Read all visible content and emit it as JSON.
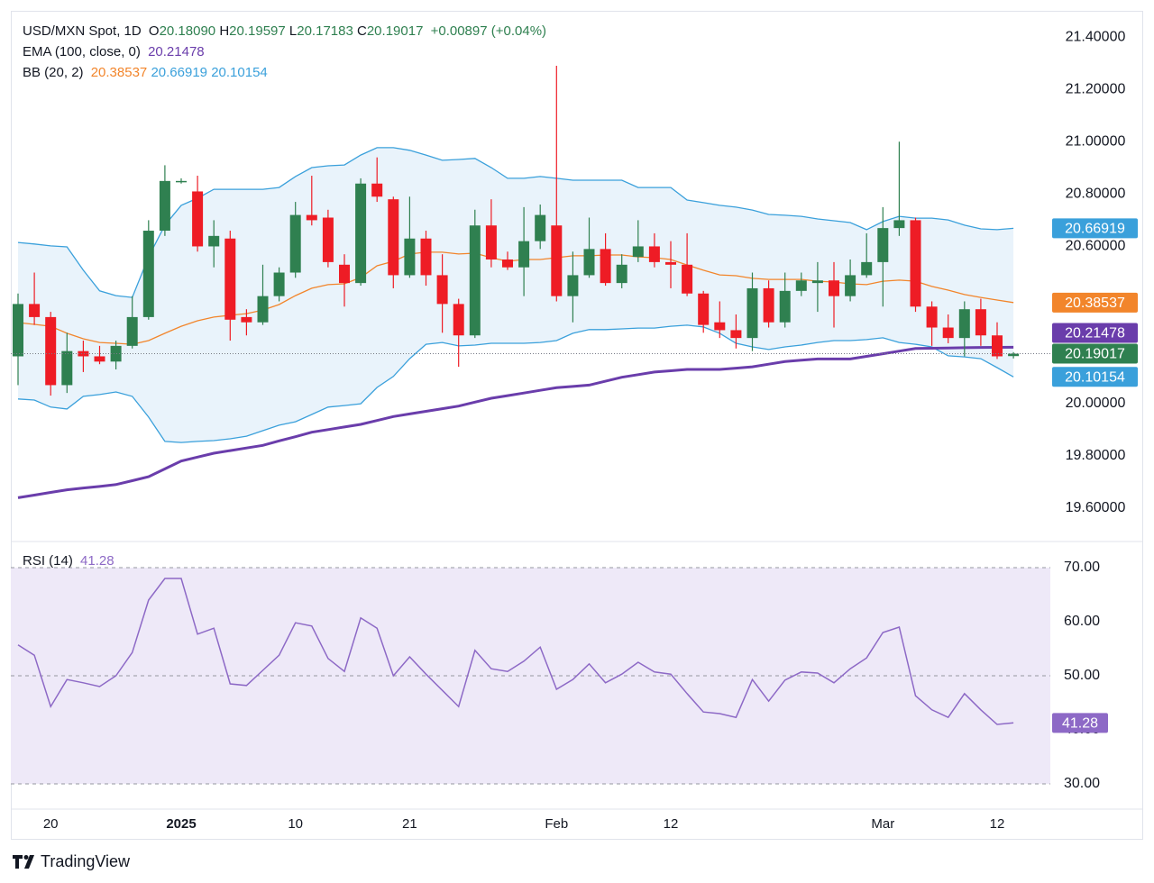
{
  "chart_data": [
    {
      "type": "candlestick",
      "header": {
        "symbol": "USD/MXN Spot, 1D",
        "keys": [
          "O",
          "H",
          "L",
          "C"
        ],
        "open_label": "20.18090",
        "change": "+0.00897 (+0.04%)"
      },
      "categories": [
        null,
        null,
        "20",
        null,
        null,
        null,
        null,
        null,
        null,
        null,
        "2025",
        null,
        null,
        null,
        null,
        null,
        null,
        "10",
        null,
        null,
        null,
        null,
        null,
        null,
        "21",
        null,
        null,
        null,
        null,
        null,
        null,
        null,
        null,
        "Feb",
        null,
        null,
        null,
        null,
        null,
        null,
        "12",
        null,
        null,
        null,
        null,
        null,
        null,
        null,
        null,
        null,
        null,
        null,
        null,
        "Mar",
        null,
        null,
        null,
        null,
        null,
        null,
        "12",
        null
      ],
      "open": [
        20.18,
        20.38,
        20.33,
        20.07,
        20.2,
        20.18,
        20.16,
        20.22,
        20.33,
        20.66,
        20.85,
        20.81,
        20.6,
        20.63,
        20.33,
        20.31,
        20.41,
        20.5,
        20.72,
        20.71,
        20.53,
        20.46,
        20.84,
        20.78,
        20.49,
        20.63,
        20.49,
        20.38,
        20.26,
        20.68,
        20.55,
        20.52,
        20.62,
        20.68,
        20.41,
        20.49,
        20.59,
        20.46,
        20.56,
        20.6,
        20.54,
        20.53,
        20.42,
        20.31,
        20.28,
        20.25,
        20.44,
        20.31,
        20.43,
        20.46,
        20.47,
        20.41,
        20.49,
        20.54,
        20.67,
        20.7,
        20.37,
        20.29,
        20.25,
        20.36,
        20.26,
        20.1809
      ],
      "high": [
        20.42,
        20.5,
        20.35,
        20.27,
        20.24,
        20.22,
        20.24,
        20.41,
        20.7,
        20.91,
        20.86,
        20.87,
        20.7,
        20.66,
        20.36,
        20.53,
        20.52,
        20.77,
        20.87,
        20.74,
        20.57,
        20.86,
        20.94,
        20.79,
        20.79,
        20.66,
        20.57,
        20.4,
        20.74,
        20.78,
        20.58,
        20.75,
        20.76,
        21.29,
        20.58,
        20.71,
        20.65,
        20.57,
        20.7,
        20.65,
        20.62,
        20.65,
        20.43,
        20.39,
        20.34,
        20.5,
        20.47,
        20.5,
        20.5,
        20.54,
        20.54,
        20.55,
        20.65,
        20.75,
        21.0,
        20.71,
        20.39,
        20.34,
        20.39,
        20.4,
        20.31,
        20.19597
      ],
      "low": [
        20.07,
        20.3,
        20.03,
        20.04,
        20.12,
        20.15,
        20.13,
        20.21,
        20.32,
        20.64,
        20.84,
        20.58,
        20.52,
        20.24,
        20.26,
        20.3,
        20.39,
        20.48,
        20.68,
        20.52,
        20.37,
        20.45,
        20.77,
        20.44,
        20.48,
        20.45,
        20.27,
        20.14,
        20.25,
        20.52,
        20.51,
        20.41,
        20.59,
        20.39,
        20.31,
        20.48,
        20.45,
        20.44,
        20.54,
        20.52,
        20.44,
        20.41,
        20.27,
        20.25,
        20.21,
        20.2,
        20.29,
        20.29,
        20.41,
        20.35,
        20.29,
        20.39,
        20.48,
        20.37,
        20.64,
        20.35,
        20.22,
        20.23,
        20.18,
        20.22,
        20.17,
        20.17183
      ],
      "close": [
        20.38,
        20.33,
        20.07,
        20.2,
        20.18,
        20.16,
        20.22,
        20.33,
        20.66,
        20.85,
        20.85,
        20.6,
        20.64,
        20.32,
        20.31,
        20.41,
        20.5,
        20.72,
        20.7,
        20.54,
        20.46,
        20.84,
        20.79,
        20.49,
        20.63,
        20.49,
        20.38,
        20.26,
        20.68,
        20.55,
        20.52,
        20.62,
        20.72,
        20.41,
        20.49,
        20.59,
        20.46,
        20.53,
        20.6,
        20.54,
        20.53,
        20.42,
        20.3,
        20.28,
        20.25,
        20.44,
        20.31,
        20.43,
        20.47,
        20.47,
        20.41,
        20.49,
        20.54,
        20.67,
        20.7,
        20.37,
        20.29,
        20.25,
        20.36,
        20.26,
        20.18,
        20.19017
      ],
      "up_color": "#2f8050",
      "down_color": "#ee1c25",
      "ema": {
        "name": "EMA (100, close, 0)",
        "color": "#6a3dab",
        "values": [
          19.64,
          19.65,
          19.66,
          19.67,
          19.677,
          19.683,
          19.69,
          19.705,
          19.72,
          19.75,
          19.78,
          19.795,
          19.81,
          19.82,
          19.83,
          19.84,
          19.857,
          19.873,
          19.89,
          19.9,
          19.91,
          19.92,
          19.935,
          19.95,
          19.96,
          19.97,
          19.98,
          19.99,
          20.005,
          20.02,
          20.03,
          20.04,
          20.05,
          20.06,
          20.065,
          20.07,
          20.085,
          20.1,
          20.11,
          20.12,
          20.125,
          20.13,
          20.13,
          20.13,
          20.135,
          20.14,
          20.15,
          20.16,
          20.165,
          20.17,
          20.17,
          20.17,
          20.18,
          20.19,
          20.2,
          20.21,
          20.211,
          20.212,
          20.213,
          20.214,
          20.2145,
          20.21478
        ]
      },
      "bollinger": {
        "name": "BB (20, 2)",
        "fill": "#e9f3fb",
        "middle": {
          "color": "#f2852b",
          "values": [
            20.309,
            20.302,
            20.295,
            20.268,
            20.247,
            20.233,
            20.23,
            20.226,
            20.24,
            20.268,
            20.295,
            20.316,
            20.33,
            20.337,
            20.343,
            20.357,
            20.378,
            20.412,
            20.44,
            20.454,
            20.457,
            20.481,
            20.526,
            20.543,
            20.571,
            20.578,
            20.578,
            20.571,
            20.574,
            20.557,
            20.543,
            20.55,
            20.55,
            20.557,
            20.564,
            20.564,
            20.567,
            20.567,
            20.56,
            20.557,
            20.55,
            20.529,
            20.509,
            20.491,
            20.488,
            20.478,
            20.474,
            20.474,
            20.474,
            20.467,
            20.464,
            20.457,
            20.454,
            20.467,
            20.471,
            20.467,
            20.447,
            20.433,
            20.416,
            20.405,
            20.395,
            20.38537
          ]
        },
        "upper": {
          "color": "#3aa0db",
          "values": [
            20.615,
            20.609,
            20.602,
            20.598,
            20.509,
            20.43,
            20.412,
            20.405,
            20.56,
            20.681,
            20.757,
            20.784,
            20.818,
            20.818,
            20.818,
            20.818,
            20.825,
            20.867,
            20.901,
            20.908,
            20.911,
            20.949,
            20.977,
            20.977,
            20.967,
            20.949,
            20.929,
            20.932,
            20.936,
            20.901,
            20.86,
            20.86,
            20.867,
            20.86,
            20.853,
            20.853,
            20.853,
            20.853,
            20.825,
            20.825,
            20.825,
            20.777,
            20.767,
            20.757,
            20.75,
            20.739,
            20.722,
            20.719,
            20.715,
            20.705,
            20.698,
            20.691,
            20.664,
            20.695,
            20.715,
            20.708,
            20.708,
            20.701,
            20.681,
            20.667,
            20.664,
            20.66919
          ]
        },
        "lower": {
          "color": "#3aa0db",
          "values": [
            20.017,
            20.013,
            19.986,
            19.979,
            20.027,
            20.034,
            20.044,
            20.027,
            19.948,
            19.855,
            19.851,
            19.855,
            19.858,
            19.865,
            19.875,
            19.896,
            19.917,
            19.93,
            19.958,
            19.986,
            19.992,
            19.999,
            20.061,
            20.103,
            20.171,
            20.226,
            20.233,
            20.22,
            20.223,
            20.23,
            20.23,
            20.23,
            20.233,
            20.24,
            20.268,
            20.282,
            20.282,
            20.285,
            20.288,
            20.288,
            20.295,
            20.299,
            20.292,
            20.268,
            20.23,
            20.216,
            20.206,
            20.216,
            20.223,
            20.233,
            20.24,
            20.24,
            20.244,
            20.251,
            20.233,
            20.226,
            20.216,
            20.182,
            20.178,
            20.171,
            20.137,
            20.10154
          ]
        }
      },
      "ylim": [
        19.476,
        21.5
      ],
      "yticks": [
        {
          "value": 21.4,
          "label": "21.40000"
        },
        {
          "value": 21.2,
          "label": "21.20000"
        },
        {
          "value": 21.0,
          "label": "21.00000"
        },
        {
          "value": 20.8,
          "label": "20.80000"
        },
        {
          "value": 20.6,
          "label": "20.60000"
        },
        {
          "value": 20.0,
          "label": "20.00000"
        },
        {
          "value": 19.8,
          "label": "19.80000"
        },
        {
          "value": 19.6,
          "label": "19.60000"
        }
      ],
      "grid": false
    },
    {
      "type": "line",
      "title": "RSI (14)",
      "color": "#8d69c6",
      "fill": "#eee9f8",
      "values": [
        55.7,
        53.8,
        44.3,
        49.3,
        48.7,
        48,
        50,
        54.3,
        64,
        68,
        68,
        57.7,
        58.8,
        48.5,
        48.2,
        51,
        53.8,
        59.8,
        59.2,
        53.2,
        50.8,
        60.7,
        58.8,
        50,
        53.5,
        50.3,
        47.3,
        44.3,
        54.7,
        51.3,
        50.8,
        52.7,
        55.3,
        47.5,
        49.3,
        52.2,
        48.7,
        50.3,
        52.5,
        50.7,
        50.3,
        46.7,
        43.3,
        43,
        42.3,
        49.3,
        45.3,
        49.2,
        50.7,
        50.5,
        48.7,
        51.3,
        53.3,
        58,
        59,
        46.3,
        43.7,
        42.3,
        46.7,
        43.7,
        41,
        41.28
      ],
      "bands": {
        "upper": 70,
        "middle": 50,
        "lower": 30
      },
      "ylim": [
        25.33,
        74.67
      ],
      "yticks": [
        {
          "value": 70,
          "label": "70.00"
        },
        {
          "value": 60,
          "label": "60.00"
        },
        {
          "value": 50,
          "label": "50.00"
        },
        {
          "value": 40,
          "label": "40.00"
        },
        {
          "value": 30,
          "label": "30.00"
        }
      ]
    }
  ],
  "footer": {
    "brand": "TradingView"
  }
}
